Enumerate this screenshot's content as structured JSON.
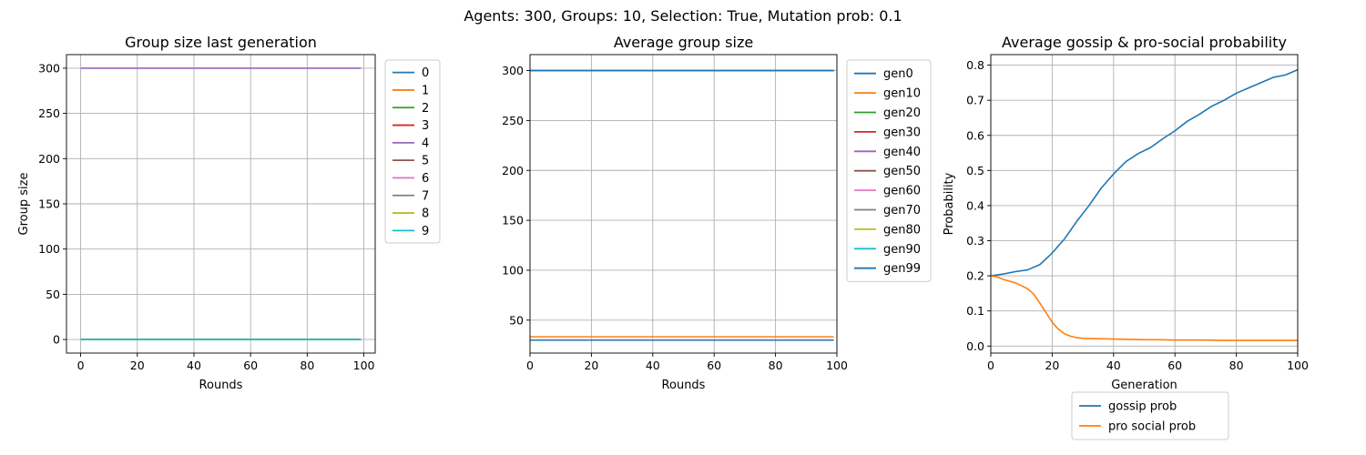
{
  "figure": {
    "suptitle": "Agents: 300, Groups: 10, Selection: True, Mutation prob: 0.1"
  },
  "chart_data": [
    {
      "type": "line",
      "title": "Group size last generation",
      "xlabel": "Rounds",
      "ylabel": "Group size",
      "xlim": [
        -5,
        104
      ],
      "ylim": [
        -15,
        315
      ],
      "xticks": [
        0,
        20,
        40,
        60,
        80,
        100
      ],
      "yticks": [
        0,
        50,
        100,
        150,
        200,
        250,
        300
      ],
      "grid": true,
      "legend_position": "outside-right",
      "series": [
        {
          "name": "0",
          "color": "#1f77b4",
          "x": [
            0,
            99
          ],
          "y": [
            0,
            0
          ]
        },
        {
          "name": "1",
          "color": "#ff7f0e",
          "x": [
            0,
            99
          ],
          "y": [
            0,
            0
          ]
        },
        {
          "name": "2",
          "color": "#2ca02c",
          "x": [
            0,
            99
          ],
          "y": [
            0,
            0
          ]
        },
        {
          "name": "3",
          "color": "#d62728",
          "x": [
            0,
            99
          ],
          "y": [
            0,
            0
          ]
        },
        {
          "name": "4",
          "color": "#9467bd",
          "x": [
            0,
            99
          ],
          "y": [
            300,
            300
          ]
        },
        {
          "name": "5",
          "color": "#8c564b",
          "x": [
            0,
            99
          ],
          "y": [
            0,
            0
          ]
        },
        {
          "name": "6",
          "color": "#e377c2",
          "x": [
            0,
            99
          ],
          "y": [
            0,
            0
          ]
        },
        {
          "name": "7",
          "color": "#7f7f7f",
          "x": [
            0,
            99
          ],
          "y": [
            0,
            0
          ]
        },
        {
          "name": "8",
          "color": "#bcbd22",
          "x": [
            0,
            99
          ],
          "y": [
            0,
            0
          ]
        },
        {
          "name": "9",
          "color": "#17becf",
          "x": [
            0,
            99
          ],
          "y": [
            0,
            0
          ]
        }
      ]
    },
    {
      "type": "line",
      "title": "Average group size",
      "xlabel": "Rounds",
      "ylabel": "",
      "xlim": [
        0,
        100
      ],
      "ylim": [
        17,
        316
      ],
      "xticks": [
        0,
        20,
        40,
        60,
        80,
        100
      ],
      "yticks": [
        50,
        100,
        150,
        200,
        250,
        300
      ],
      "grid": true,
      "legend_position": "outside-right",
      "series": [
        {
          "name": "gen0",
          "color": "#1f77b4",
          "x": [
            0,
            99
          ],
          "y": [
            30,
            30
          ]
        },
        {
          "name": "gen10",
          "color": "#ff7f0e",
          "x": [
            0,
            99
          ],
          "y": [
            33.3,
            33.3
          ]
        },
        {
          "name": "gen20",
          "color": "#2ca02c",
          "x": [
            0,
            99
          ],
          "y": [
            300,
            300
          ]
        },
        {
          "name": "gen30",
          "color": "#d62728",
          "x": [
            0,
            99
          ],
          "y": [
            300,
            300
          ]
        },
        {
          "name": "gen40",
          "color": "#9467bd",
          "x": [
            0,
            99
          ],
          "y": [
            300,
            300
          ]
        },
        {
          "name": "gen50",
          "color": "#8c564b",
          "x": [
            0,
            99
          ],
          "y": [
            300,
            300
          ]
        },
        {
          "name": "gen60",
          "color": "#e377c2",
          "x": [
            0,
            99
          ],
          "y": [
            300,
            300
          ]
        },
        {
          "name": "gen70",
          "color": "#7f7f7f",
          "x": [
            0,
            99
          ],
          "y": [
            300,
            300
          ]
        },
        {
          "name": "gen80",
          "color": "#bcbd22",
          "x": [
            0,
            99
          ],
          "y": [
            300,
            300
          ]
        },
        {
          "name": "gen90",
          "color": "#17becf",
          "x": [
            0,
            99
          ],
          "y": [
            300,
            300
          ]
        },
        {
          "name": "gen99",
          "color": "#1f77b4",
          "x": [
            0,
            99
          ],
          "y": [
            300,
            300
          ]
        }
      ]
    },
    {
      "type": "line",
      "title": "Average gossip & pro-social probability",
      "xlabel": "Generation",
      "ylabel": "Probability",
      "xlim": [
        0,
        100
      ],
      "ylim": [
        -0.02,
        0.83
      ],
      "xticks": [
        0,
        20,
        40,
        60,
        80,
        100
      ],
      "yticks": [
        0.0,
        0.1,
        0.2,
        0.3,
        0.4,
        0.5,
        0.6,
        0.7,
        0.8
      ],
      "ytick_labels": [
        "0.0",
        "0.1",
        "0.2",
        "0.3",
        "0.4",
        "0.5",
        "0.6",
        "0.7",
        "0.8"
      ],
      "grid": true,
      "legend_position": "below",
      "series": [
        {
          "name": "gossip prob",
          "color": "#1f77b4",
          "x": [
            0,
            4,
            8,
            12,
            16,
            20,
            24,
            28,
            32,
            36,
            40,
            44,
            48,
            52,
            56,
            60,
            64,
            68,
            72,
            76,
            80,
            84,
            88,
            92,
            96,
            100
          ],
          "y": [
            0.2,
            0.205,
            0.212,
            0.217,
            0.232,
            0.265,
            0.305,
            0.355,
            0.4,
            0.45,
            0.49,
            0.525,
            0.548,
            0.565,
            0.59,
            0.613,
            0.64,
            0.66,
            0.683,
            0.7,
            0.72,
            0.735,
            0.75,
            0.765,
            0.772,
            0.787
          ]
        },
        {
          "name": "pro social prob",
          "color": "#ff7f0e",
          "x": [
            0,
            2,
            4,
            6,
            8,
            10,
            12,
            14,
            16,
            18,
            20,
            22,
            24,
            26,
            28,
            30,
            35,
            40,
            45,
            50,
            55,
            60,
            65,
            70,
            75,
            80,
            85,
            90,
            95,
            100
          ],
          "y": [
            0.2,
            0.197,
            0.19,
            0.185,
            0.18,
            0.172,
            0.163,
            0.148,
            0.122,
            0.095,
            0.068,
            0.048,
            0.035,
            0.028,
            0.024,
            0.022,
            0.021,
            0.02,
            0.019,
            0.018,
            0.018,
            0.017,
            0.017,
            0.017,
            0.016,
            0.016,
            0.016,
            0.016,
            0.016,
            0.016
          ]
        }
      ]
    }
  ]
}
